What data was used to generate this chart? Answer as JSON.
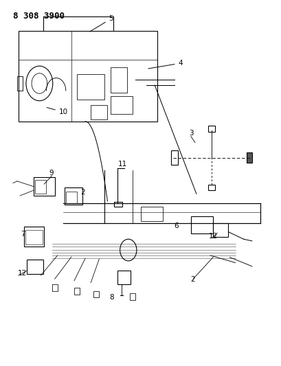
{
  "title_code": "8 308 3900",
  "bg_color": "#ffffff",
  "line_color": "#000000",
  "fig_width": 4.1,
  "fig_height": 5.33,
  "dpi": 100,
  "title_fontsize": 9,
  "label_fontsize": 7.5
}
